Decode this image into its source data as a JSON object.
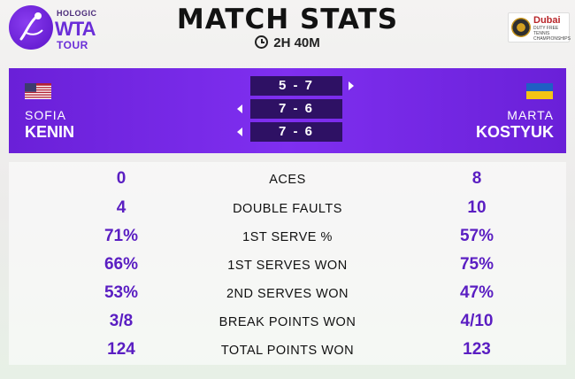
{
  "header": {
    "logo": {
      "brand": "HOLOGIC",
      "wta": "WTA",
      "tour": "TOUR"
    },
    "title": "MATCH STATS",
    "duration": "2H 40M",
    "sponsor": {
      "name": "Dubai",
      "sub": "DUTY FREE TENNIS CHAMPIONSHIPS"
    }
  },
  "players": {
    "left": {
      "first": "SOFIA",
      "last": "KENIN",
      "flag": "us-flag"
    },
    "right": {
      "first": "MARTA",
      "last": "KOSTYUK",
      "flag": "ukraine-flag"
    }
  },
  "sets": [
    "5 - 7",
    "7 - 6",
    "7 - 6"
  ],
  "colors": {
    "accent": "#7f2ff0",
    "score_box": "#2e1164",
    "stat_value": "#5a1ec2"
  },
  "stats": [
    {
      "label": "ACES",
      "left": "0",
      "right": "8"
    },
    {
      "label": "DOUBLE FAULTS",
      "left": "4",
      "right": "10"
    },
    {
      "label": "1ST SERVE %",
      "left": "71%",
      "right": "57%"
    },
    {
      "label": "1ST SERVES WON",
      "left": "66%",
      "right": "75%"
    },
    {
      "label": "2ND SERVES WON",
      "left": "53%",
      "right": "47%"
    },
    {
      "label": "BREAK POINTS WON",
      "left": "3/8",
      "right": "4/10"
    },
    {
      "label": "TOTAL POINTS WON",
      "left": "124",
      "right": "123"
    }
  ]
}
